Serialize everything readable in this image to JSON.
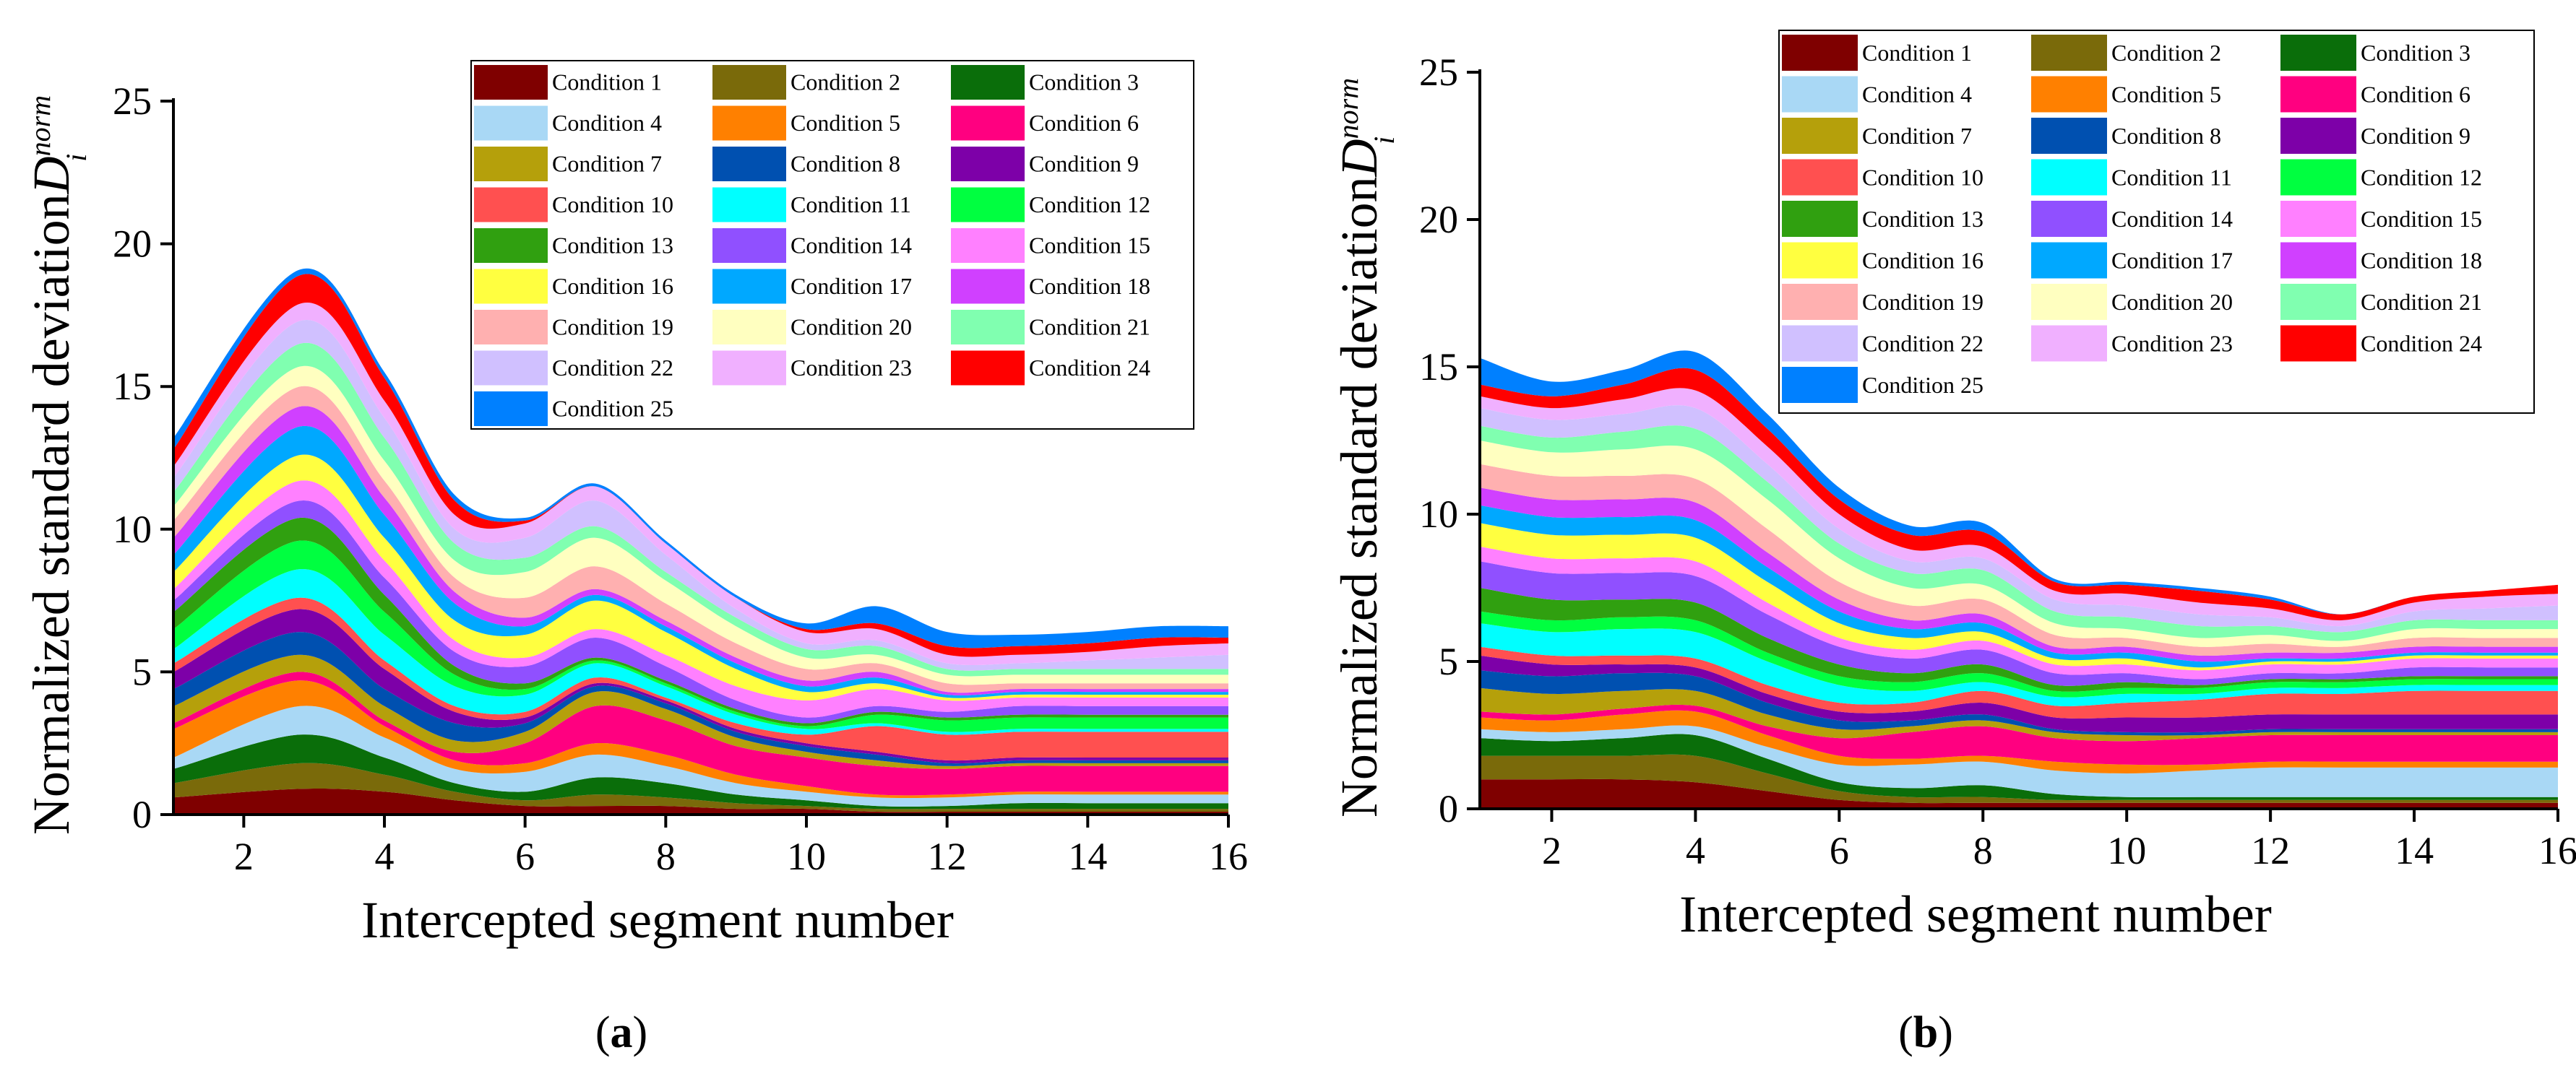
{
  "colors": [
    "#7f0000",
    "#7a6a0a",
    "#0a6e0a",
    "#a9d8f5",
    "#ff8000",
    "#ff0080",
    "#b5a00b",
    "#0050b0",
    "#7d00a8",
    "#ff5050",
    "#00ffff",
    "#00ff40",
    "#30a010",
    "#9050ff",
    "#ff80ff",
    "#ffff40",
    "#00a8ff",
    "#d040ff",
    "#ffb0b0",
    "#ffffc0",
    "#80ffb0",
    "#d0c0ff",
    "#f0b0ff",
    "#ff0000",
    "#0080ff"
  ],
  "chart_data": [
    {
      "type": "area",
      "stacked": true,
      "panel": "a",
      "caption_label": "a",
      "xlabel": "Intercepted segment number",
      "ylabel_main": "Normalized standard deviation",
      "ylabel_symbol": "D",
      "ylabel_sup": "norm",
      "ylabel_sub": "i",
      "xlim": [
        1,
        16
      ],
      "ylim": [
        0,
        25
      ],
      "xticks": [
        2,
        4,
        6,
        8,
        10,
        12,
        14,
        16
      ],
      "yticks": [
        0,
        5,
        10,
        15,
        20,
        25
      ],
      "x": [
        1,
        2.8,
        4,
        5,
        6,
        7,
        8,
        9,
        10,
        11,
        12,
        13,
        14,
        15,
        16
      ],
      "legend_position": "top-right",
      "series": [
        {
          "name": "Condition 1",
          "values": [
            0.6,
            0.9,
            0.8,
            0.5,
            0.3,
            0.3,
            0.3,
            0.2,
            0.2,
            0.1,
            0.1,
            0.1,
            0.1,
            0.1,
            0.1
          ]
        },
        {
          "name": "Condition 2",
          "values": [
            0.5,
            0.9,
            0.6,
            0.3,
            0.2,
            0.4,
            0.3,
            0.2,
            0.1,
            0.1,
            0.1,
            0.1,
            0.1,
            0.1,
            0.1
          ]
        },
        {
          "name": "Condition 3",
          "values": [
            0.5,
            1.0,
            0.6,
            0.3,
            0.3,
            0.6,
            0.5,
            0.3,
            0.2,
            0.1,
            0.1,
            0.2,
            0.2,
            0.2,
            0.2
          ]
        },
        {
          "name": "Condition 4",
          "values": [
            0.4,
            1.0,
            0.7,
            0.5,
            0.7,
            0.8,
            0.6,
            0.4,
            0.3,
            0.3,
            0.3,
            0.3,
            0.3,
            0.3,
            0.3
          ]
        },
        {
          "name": "Condition 5",
          "values": [
            1.0,
            0.9,
            0.4,
            0.3,
            0.3,
            0.4,
            0.4,
            0.3,
            0.2,
            0.1,
            0.1,
            0.1,
            0.1,
            0.1,
            0.1
          ]
        },
        {
          "name": "Condition 6",
          "values": [
            0.2,
            0.3,
            0.2,
            0.3,
            0.7,
            1.3,
            1.2,
            1.0,
            1.0,
            1.0,
            0.9,
            0.9,
            0.9,
            0.9,
            0.9
          ]
        },
        {
          "name": "Condition 7",
          "values": [
            0.6,
            0.6,
            0.5,
            0.4,
            0.4,
            0.5,
            0.4,
            0.3,
            0.2,
            0.2,
            0.1,
            0.1,
            0.1,
            0.1,
            0.1
          ]
        },
        {
          "name": "Condition 8",
          "values": [
            0.6,
            0.8,
            0.6,
            0.6,
            0.3,
            0.2,
            0.2,
            0.2,
            0.2,
            0.2,
            0.1,
            0.1,
            0.1,
            0.1,
            0.1
          ]
        },
        {
          "name": "Condition 9",
          "values": [
            0.6,
            0.8,
            0.7,
            0.4,
            0.2,
            0.1,
            0.1,
            0.1,
            0.1,
            0.1,
            0.1,
            0.1,
            0.1,
            0.1,
            0.1
          ]
        },
        {
          "name": "Condition 10",
          "values": [
            0.3,
            0.4,
            0.3,
            0.2,
            0.2,
            0.2,
            0.1,
            0.2,
            0.3,
            0.9,
            0.9,
            0.9,
            0.9,
            0.9,
            0.9
          ]
        },
        {
          "name": "Condition 11",
          "values": [
            0.5,
            1.0,
            0.9,
            0.7,
            0.6,
            0.5,
            0.4,
            0.3,
            0.2,
            0.1,
            0.1,
            0.1,
            0.1,
            0.1,
            0.1
          ]
        },
        {
          "name": "Condition 12",
          "values": [
            0.7,
            1.0,
            0.8,
            0.4,
            0.2,
            0.1,
            0.1,
            0.1,
            0.1,
            0.3,
            0.4,
            0.4,
            0.4,
            0.4,
            0.4
          ]
        },
        {
          "name": "Condition 13",
          "values": [
            0.6,
            0.8,
            0.6,
            0.3,
            0.2,
            0.1,
            0.1,
            0.1,
            0.1,
            0.1,
            0.1,
            0.1,
            0.1,
            0.1,
            0.1
          ]
        },
        {
          "name": "Condition 14",
          "values": [
            0.4,
            0.6,
            0.6,
            0.5,
            0.6,
            0.7,
            0.5,
            0.3,
            0.2,
            0.2,
            0.2,
            0.3,
            0.3,
            0.3,
            0.3
          ]
        },
        {
          "name": "Condition 15",
          "values": [
            0.4,
            0.7,
            0.6,
            0.4,
            0.3,
            0.3,
            0.4,
            0.5,
            0.6,
            0.6,
            0.4,
            0.3,
            0.3,
            0.3,
            0.3
          ]
        },
        {
          "name": "Condition 16",
          "values": [
            0.6,
            0.9,
            0.8,
            0.7,
            0.8,
            1.0,
            0.8,
            0.6,
            0.3,
            0.2,
            0.1,
            0.1,
            0.1,
            0.1,
            0.1
          ]
        },
        {
          "name": "Condition 17",
          "values": [
            0.6,
            1.0,
            0.8,
            0.6,
            0.3,
            0.2,
            0.2,
            0.2,
            0.2,
            0.2,
            0.1,
            0.1,
            0.1,
            0.1,
            0.1
          ]
        },
        {
          "name": "Condition 18",
          "values": [
            0.6,
            0.7,
            0.6,
            0.4,
            0.3,
            0.2,
            0.2,
            0.2,
            0.2,
            0.2,
            0.1,
            0.1,
            0.1,
            0.1,
            0.1
          ]
        },
        {
          "name": "Condition 19",
          "values": [
            0.6,
            0.7,
            0.6,
            0.5,
            0.7,
            0.8,
            0.6,
            0.5,
            0.4,
            0.3,
            0.3,
            0.2,
            0.2,
            0.2,
            0.2
          ]
        },
        {
          "name": "Condition 20",
          "values": [
            0.5,
            0.7,
            0.7,
            0.6,
            0.9,
            1.0,
            0.8,
            0.6,
            0.4,
            0.3,
            0.3,
            0.3,
            0.3,
            0.3,
            0.3
          ]
        },
        {
          "name": "Condition 21",
          "values": [
            0.5,
            0.8,
            0.8,
            0.6,
            0.5,
            0.4,
            0.3,
            0.3,
            0.3,
            0.3,
            0.2,
            0.2,
            0.2,
            0.2,
            0.2
          ]
        },
        {
          "name": "Condition 22",
          "values": [
            0.5,
            0.8,
            0.7,
            0.5,
            0.7,
            0.9,
            0.6,
            0.3,
            0.2,
            0.2,
            0.2,
            0.2,
            0.3,
            0.4,
            0.5
          ]
        },
        {
          "name": "Condition 23",
          "values": [
            0.4,
            0.6,
            0.6,
            0.5,
            0.5,
            0.5,
            0.4,
            0.4,
            0.4,
            0.4,
            0.3,
            0.3,
            0.3,
            0.4,
            0.4
          ]
        },
        {
          "name": "Condition 24",
          "values": [
            0.6,
            1.0,
            0.8,
            0.5,
            0.1,
            0.0,
            0.0,
            0.0,
            0.1,
            0.2,
            0.3,
            0.3,
            0.3,
            0.3,
            0.2
          ]
        },
        {
          "name": "Condition 25",
          "values": [
            0.4,
            0.2,
            0.2,
            0.2,
            0.1,
            0.1,
            0.1,
            0.1,
            0.2,
            0.6,
            0.5,
            0.4,
            0.4,
            0.4,
            0.4
          ]
        }
      ]
    },
    {
      "type": "area",
      "stacked": true,
      "panel": "b",
      "caption_label": "b",
      "xlabel": "Intercepted segment number",
      "ylabel_main": "Normalized standard deviation",
      "ylabel_symbol": "D",
      "ylabel_sup": "norm",
      "ylabel_sub": "i",
      "xlim": [
        1,
        16
      ],
      "ylim": [
        0,
        25
      ],
      "xticks": [
        2,
        4,
        6,
        8,
        10,
        12,
        14,
        16
      ],
      "yticks": [
        0,
        5,
        10,
        15,
        20,
        25
      ],
      "x": [
        1,
        2,
        3,
        4,
        5,
        6,
        7,
        8,
        9,
        10,
        11,
        12,
        13,
        14,
        15,
        16
      ],
      "legend_position": "top-right",
      "series": [
        {
          "name": "Condition 1",
          "values": [
            1.0,
            1.0,
            1.0,
            0.9,
            0.6,
            0.3,
            0.2,
            0.2,
            0.2,
            0.2,
            0.2,
            0.2,
            0.2,
            0.2,
            0.2,
            0.2
          ]
        },
        {
          "name": "Condition 2",
          "values": [
            0.8,
            0.8,
            0.8,
            0.9,
            0.6,
            0.3,
            0.2,
            0.2,
            0.1,
            0.1,
            0.1,
            0.1,
            0.1,
            0.1,
            0.1,
            0.1
          ]
        },
        {
          "name": "Condition 3",
          "values": [
            0.6,
            0.5,
            0.6,
            0.7,
            0.5,
            0.3,
            0.3,
            0.4,
            0.2,
            0.1,
            0.1,
            0.1,
            0.1,
            0.1,
            0.1,
            0.1
          ]
        },
        {
          "name": "Condition 4",
          "values": [
            0.3,
            0.3,
            0.3,
            0.3,
            0.4,
            0.6,
            0.8,
            0.8,
            0.8,
            0.8,
            0.9,
            1.0,
            1.0,
            1.0,
            1.0,
            1.0
          ]
        },
        {
          "name": "Condition 5",
          "values": [
            0.4,
            0.4,
            0.5,
            0.5,
            0.4,
            0.3,
            0.2,
            0.2,
            0.3,
            0.3,
            0.2,
            0.2,
            0.2,
            0.2,
            0.2,
            0.2
          ]
        },
        {
          "name": "Condition 6",
          "values": [
            0.2,
            0.2,
            0.2,
            0.2,
            0.3,
            0.6,
            0.9,
            1.0,
            0.8,
            0.8,
            0.9,
            0.9,
            0.9,
            0.9,
            0.9,
            0.9
          ]
        },
        {
          "name": "Condition 7",
          "values": [
            0.8,
            0.7,
            0.6,
            0.5,
            0.4,
            0.3,
            0.2,
            0.2,
            0.2,
            0.2,
            0.1,
            0.1,
            0.1,
            0.1,
            0.1,
            0.1
          ]
        },
        {
          "name": "Condition 8",
          "values": [
            0.6,
            0.6,
            0.6,
            0.5,
            0.4,
            0.3,
            0.2,
            0.2,
            0.1,
            0.1,
            0.1,
            0.1,
            0.1,
            0.1,
            0.1,
            0.1
          ]
        },
        {
          "name": "Condition 9",
          "values": [
            0.5,
            0.4,
            0.3,
            0.3,
            0.3,
            0.3,
            0.3,
            0.4,
            0.4,
            0.5,
            0.5,
            0.5,
            0.5,
            0.5,
            0.5,
            0.5
          ]
        },
        {
          "name": "Condition 10",
          "values": [
            0.3,
            0.3,
            0.3,
            0.3,
            0.3,
            0.3,
            0.3,
            0.4,
            0.4,
            0.5,
            0.6,
            0.7,
            0.7,
            0.8,
            0.8,
            0.8
          ]
        },
        {
          "name": "Condition 11",
          "values": [
            0.8,
            0.8,
            0.9,
            0.9,
            0.8,
            0.6,
            0.4,
            0.3,
            0.3,
            0.3,
            0.2,
            0.2,
            0.2,
            0.2,
            0.2,
            0.2
          ]
        },
        {
          "name": "Condition 12",
          "values": [
            0.4,
            0.4,
            0.4,
            0.4,
            0.3,
            0.3,
            0.3,
            0.3,
            0.2,
            0.2,
            0.2,
            0.2,
            0.2,
            0.2,
            0.2,
            0.2
          ]
        },
        {
          "name": "Condition 13",
          "values": [
            0.8,
            0.7,
            0.6,
            0.6,
            0.5,
            0.4,
            0.3,
            0.3,
            0.2,
            0.2,
            0.1,
            0.1,
            0.1,
            0.1,
            0.1,
            0.1
          ]
        },
        {
          "name": "Condition 14",
          "values": [
            0.9,
            0.9,
            0.9,
            0.9,
            0.8,
            0.6,
            0.5,
            0.5,
            0.4,
            0.3,
            0.2,
            0.2,
            0.2,
            0.3,
            0.3,
            0.3
          ]
        },
        {
          "name": "Condition 15",
          "values": [
            0.5,
            0.5,
            0.5,
            0.5,
            0.4,
            0.3,
            0.3,
            0.3,
            0.3,
            0.3,
            0.3,
            0.3,
            0.3,
            0.3,
            0.3,
            0.3
          ]
        },
        {
          "name": "Condition 16",
          "values": [
            0.8,
            0.8,
            0.8,
            0.8,
            0.7,
            0.5,
            0.4,
            0.3,
            0.2,
            0.2,
            0.1,
            0.1,
            0.1,
            0.1,
            0.1,
            0.1
          ]
        },
        {
          "name": "Condition 17",
          "values": [
            0.6,
            0.6,
            0.6,
            0.6,
            0.5,
            0.4,
            0.3,
            0.3,
            0.2,
            0.2,
            0.2,
            0.1,
            0.1,
            0.1,
            0.1,
            0.1
          ]
        },
        {
          "name": "Condition 18",
          "values": [
            0.6,
            0.6,
            0.6,
            0.6,
            0.5,
            0.4,
            0.3,
            0.3,
            0.2,
            0.2,
            0.2,
            0.2,
            0.2,
            0.2,
            0.2,
            0.2
          ]
        },
        {
          "name": "Condition 19",
          "values": [
            0.8,
            0.8,
            0.8,
            0.8,
            0.8,
            0.6,
            0.5,
            0.5,
            0.4,
            0.3,
            0.3,
            0.3,
            0.2,
            0.3,
            0.3,
            0.3
          ]
        },
        {
          "name": "Condition 20",
          "values": [
            0.8,
            0.8,
            0.9,
            1.0,
            1.0,
            0.8,
            0.6,
            0.5,
            0.4,
            0.3,
            0.3,
            0.3,
            0.2,
            0.3,
            0.3,
            0.3
          ]
        },
        {
          "name": "Condition 21",
          "values": [
            0.5,
            0.5,
            0.6,
            0.7,
            0.6,
            0.5,
            0.5,
            0.5,
            0.4,
            0.4,
            0.4,
            0.3,
            0.3,
            0.3,
            0.3,
            0.3
          ]
        },
        {
          "name": "Condition 22",
          "values": [
            0.6,
            0.6,
            0.6,
            0.7,
            0.6,
            0.5,
            0.4,
            0.4,
            0.4,
            0.4,
            0.4,
            0.3,
            0.2,
            0.3,
            0.4,
            0.5
          ]
        },
        {
          "name": "Condition 23",
          "values": [
            0.4,
            0.4,
            0.5,
            0.6,
            0.6,
            0.5,
            0.4,
            0.4,
            0.3,
            0.4,
            0.4,
            0.3,
            0.2,
            0.3,
            0.4,
            0.4
          ]
        },
        {
          "name": "Condition 24",
          "values": [
            0.4,
            0.4,
            0.5,
            0.7,
            0.6,
            0.5,
            0.5,
            0.5,
            0.3,
            0.3,
            0.4,
            0.3,
            0.2,
            0.2,
            0.2,
            0.3
          ]
        },
        {
          "name": "Condition 25",
          "values": [
            0.9,
            0.5,
            0.5,
            0.6,
            0.5,
            0.4,
            0.3,
            0.3,
            0.1,
            0.1,
            0.1,
            0.1,
            0.0,
            0.0,
            0.0,
            0.0
          ]
        }
      ]
    }
  ]
}
